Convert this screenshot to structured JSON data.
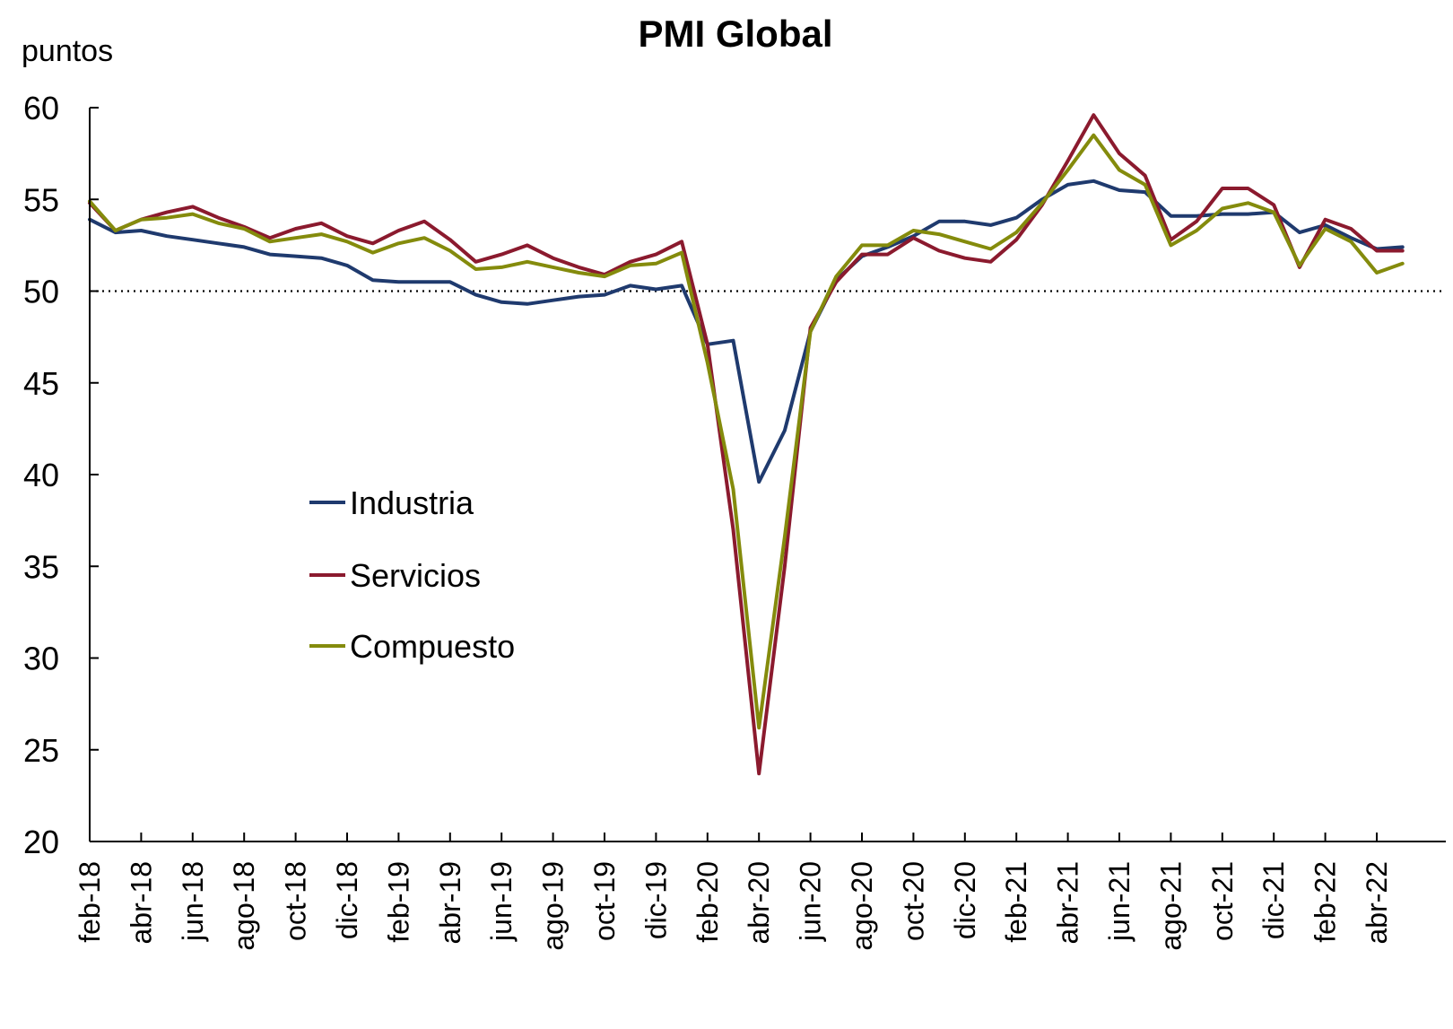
{
  "chart_data": {
    "type": "line",
    "title": "PMI Global",
    "ylabel": "puntos",
    "xlabel": "",
    "ylim": [
      20,
      60
    ],
    "yticks": [
      20,
      25,
      30,
      35,
      40,
      45,
      50,
      55,
      60
    ],
    "reference_line": 50,
    "legend_position": "center-left",
    "x": [
      "feb-18",
      "mar-18",
      "abr-18",
      "may-18",
      "jun-18",
      "jul-18",
      "ago-18",
      "sep-18",
      "oct-18",
      "nov-18",
      "dic-18",
      "ene-19",
      "feb-19",
      "mar-19",
      "abr-19",
      "may-19",
      "jun-19",
      "jul-19",
      "ago-19",
      "sep-19",
      "oct-19",
      "nov-19",
      "dic-19",
      "ene-20",
      "feb-20",
      "mar-20",
      "abr-20",
      "may-20",
      "jun-20",
      "jul-20",
      "ago-20",
      "sep-20",
      "oct-20",
      "nov-20",
      "dic-20",
      "ene-21",
      "feb-21",
      "mar-21",
      "abr-21",
      "may-21",
      "jun-21",
      "jul-21",
      "ago-21",
      "sep-21",
      "oct-21",
      "nov-21",
      "dic-21",
      "ene-22",
      "feb-22",
      "mar-22",
      "abr-22",
      "may-22"
    ],
    "xtick_labels": [
      "feb-18",
      "abr-18",
      "jun-18",
      "ago-18",
      "oct-18",
      "dic-18",
      "feb-19",
      "abr-19",
      "jun-19",
      "ago-19",
      "oct-19",
      "dic-19",
      "feb-20",
      "abr-20",
      "jun-20",
      "ago-20",
      "oct-20",
      "dic-20",
      "feb-21",
      "abr-21",
      "jun-21",
      "ago-21",
      "oct-21",
      "dic-21",
      "feb-22",
      "abr-22"
    ],
    "series": [
      {
        "name": "Industria",
        "color": "#1f3a6e",
        "values": [
          53.9,
          53.2,
          53.3,
          53.0,
          52.8,
          52.6,
          52.4,
          52.0,
          51.9,
          51.8,
          51.4,
          50.6,
          50.5,
          50.5,
          50.5,
          49.8,
          49.4,
          49.3,
          49.5,
          49.7,
          49.8,
          50.3,
          50.1,
          50.3,
          47.1,
          47.3,
          39.6,
          42.4,
          47.8,
          50.6,
          51.9,
          52.4,
          53.0,
          53.8,
          53.8,
          53.6,
          54.0,
          55.0,
          55.8,
          56.0,
          55.5,
          55.4,
          54.1,
          54.1,
          54.2,
          54.2,
          54.3,
          53.2,
          53.6,
          52.9,
          52.3,
          52.4
        ]
      },
      {
        "name": "Servicios",
        "color": "#8b1a2e",
        "values": [
          54.8,
          53.3,
          53.9,
          54.3,
          54.6,
          54.0,
          53.5,
          52.9,
          53.4,
          53.7,
          53.0,
          52.6,
          53.3,
          53.8,
          52.8,
          51.6,
          52.0,
          52.5,
          51.8,
          51.3,
          50.9,
          51.6,
          52.0,
          52.7,
          47.1,
          37.0,
          23.7,
          35.0,
          48.0,
          50.5,
          52.0,
          52.0,
          52.9,
          52.2,
          51.8,
          51.6,
          52.8,
          54.7,
          57.1,
          59.6,
          57.5,
          56.3,
          52.8,
          53.8,
          55.6,
          55.6,
          54.7,
          51.3,
          53.9,
          53.4,
          52.2,
          52.2
        ]
      },
      {
        "name": "Compuesto",
        "color": "#848b0c",
        "values": [
          54.9,
          53.3,
          53.9,
          54.0,
          54.2,
          53.7,
          53.4,
          52.7,
          52.9,
          53.1,
          52.7,
          52.1,
          52.6,
          52.9,
          52.2,
          51.2,
          51.3,
          51.6,
          51.3,
          51.0,
          50.8,
          51.4,
          51.5,
          52.1,
          46.1,
          39.2,
          26.2,
          36.6,
          47.8,
          50.8,
          52.5,
          52.5,
          53.3,
          53.1,
          52.7,
          52.3,
          53.2,
          54.8,
          56.6,
          58.5,
          56.6,
          55.8,
          52.5,
          53.3,
          54.5,
          54.8,
          54.3,
          51.4,
          53.4,
          52.7,
          51.0,
          51.5
        ]
      }
    ]
  }
}
